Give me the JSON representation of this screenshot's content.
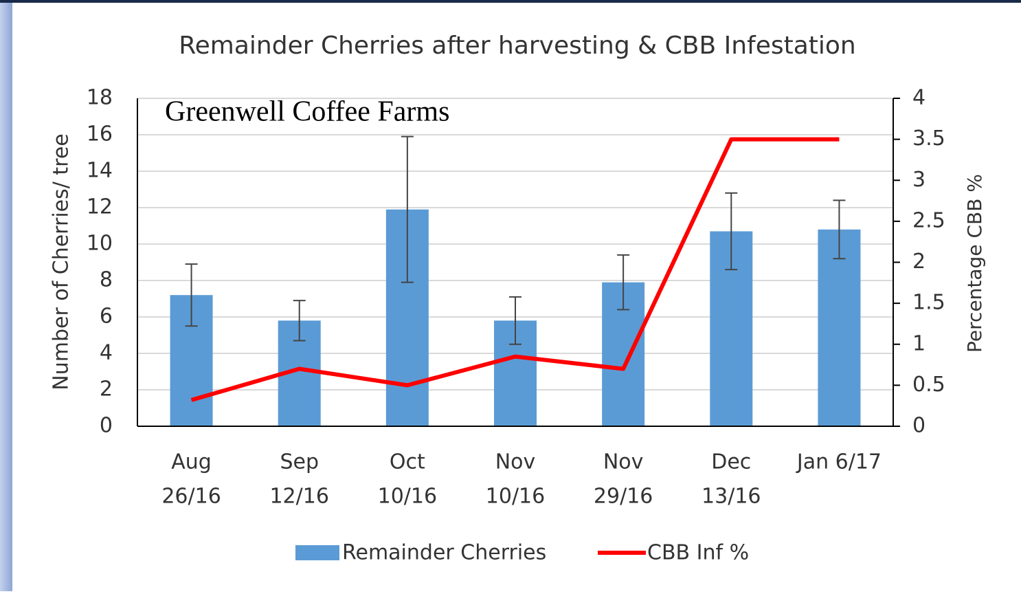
{
  "chart_data": {
    "type": "bar",
    "title": "Remainder  Cherries  after harvesting   & CBB Infestation",
    "annotation": "Greenwell Coffee Farms",
    "ylabel": "Number of Cherries/ tree",
    "y2label": "Percentage CBB %",
    "categories": [
      [
        "Aug",
        "26/16"
      ],
      [
        "Sep",
        "12/16"
      ],
      [
        "Oct",
        "10/16"
      ],
      [
        "Nov",
        "10/16"
      ],
      [
        "Nov",
        "29/16"
      ],
      [
        "Dec",
        "13/16"
      ],
      [
        "Jan 6/17"
      ]
    ],
    "series": [
      {
        "name": "Remainder Cherries",
        "type": "bar",
        "color": "#5b9bd5",
        "values": [
          7.2,
          5.8,
          11.9,
          5.8,
          7.9,
          10.7,
          10.8
        ],
        "errors": [
          1.7,
          1.1,
          4.0,
          1.3,
          1.5,
          2.1,
          1.6
        ]
      },
      {
        "name": "CBB Inf %",
        "type": "line",
        "axis": "y2",
        "color": "#ff0000",
        "values": [
          0.32,
          0.7,
          0.5,
          0.85,
          0.7,
          3.5,
          3.5
        ]
      }
    ],
    "ylim": [
      0,
      18
    ],
    "yticks": [
      0,
      2,
      4,
      6,
      8,
      10,
      12,
      14,
      16,
      18
    ],
    "y2lim": [
      0,
      4
    ],
    "y2ticks": [
      0,
      0.5,
      1,
      1.5,
      2,
      2.5,
      3,
      3.5,
      4
    ],
    "grid": true,
    "legend": "bottom"
  }
}
